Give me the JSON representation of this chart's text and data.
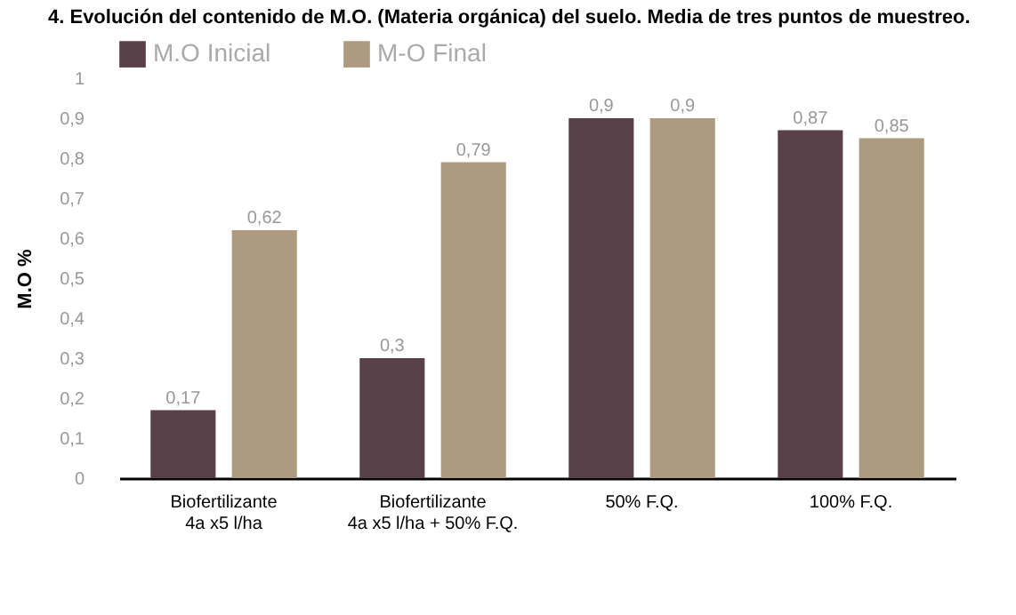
{
  "chart_data": {
    "type": "bar",
    "title": "4.   Evolución del contenido de M.O. (Materia orgánica) del suelo. Media de tres puntos de muestreo.",
    "ylabel": "M.O %",
    "categories": [
      "Biofertilizante\n4a x5 l/ha",
      "Biofertilizante\n4a x5 l/ha + 50% F.Q.",
      "50% F.Q.",
      "100% F.Q."
    ],
    "series": [
      {
        "name": "M.O Inicial",
        "color": "#5a4049",
        "values": [
          0.17,
          0.3,
          0.9,
          0.87
        ],
        "value_labels": [
          "0,17",
          "0,3",
          "0,9",
          "0,87"
        ]
      },
      {
        "name": "M-O Final",
        "color": "#ae9a7e",
        "values": [
          0.62,
          0.79,
          0.9,
          0.85
        ],
        "value_labels": [
          "0,62",
          "0,79",
          "0,9",
          "0,85"
        ]
      }
    ],
    "ylim": [
      0,
      1
    ],
    "yticks": [
      0,
      {
        "value": 0.1,
        "label": "0,1"
      },
      {
        "value": 0.2,
        "label": "0,2"
      },
      {
        "value": 0.3,
        "label": "0,3"
      },
      {
        "value": 0.4,
        "label": "0,4"
      },
      {
        "value": 0.5,
        "label": "0,5"
      },
      {
        "value": 0.6,
        "label": "0,6"
      },
      {
        "value": 0.7,
        "label": "0,7"
      },
      {
        "value": 0.8,
        "label": "0,8"
      },
      {
        "value": 0.9,
        "label": "0,9"
      },
      1
    ],
    "grid": false,
    "legend": "top"
  }
}
